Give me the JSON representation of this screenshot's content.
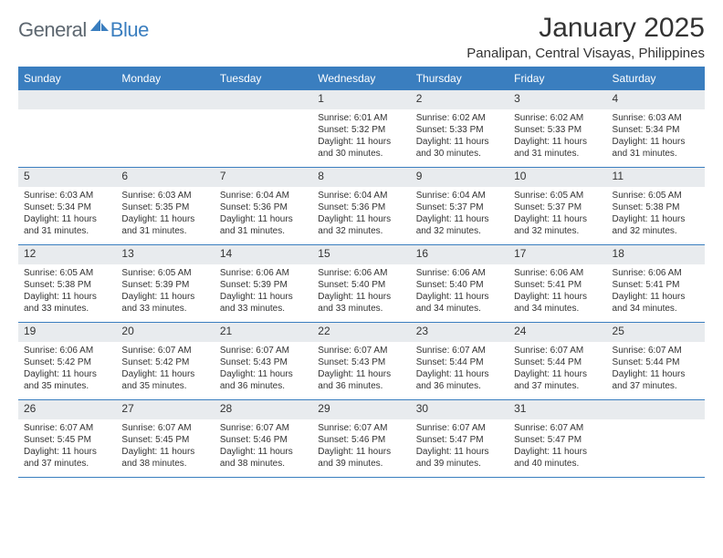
{
  "logo": {
    "general": "General",
    "blue": "Blue"
  },
  "title": "January 2025",
  "location": "Panalipan, Central Visayas, Philippines",
  "colors": {
    "header_bg": "#3a7ebf",
    "header_text": "#ffffff",
    "daynum_bg": "#e8ebee",
    "text": "#333333",
    "page_bg": "#ffffff",
    "logo_gray": "#5d6770",
    "logo_blue": "#3a7ebf"
  },
  "typography": {
    "title_fontsize": 30,
    "location_fontsize": 15,
    "weekday_fontsize": 12,
    "daynum_fontsize": 12,
    "body_fontsize": 10
  },
  "weekdays": [
    "Sunday",
    "Monday",
    "Tuesday",
    "Wednesday",
    "Thursday",
    "Friday",
    "Saturday"
  ],
  "weeks": [
    [
      {
        "n": "",
        "sunrise": "",
        "sunset": "",
        "daylight": ""
      },
      {
        "n": "",
        "sunrise": "",
        "sunset": "",
        "daylight": ""
      },
      {
        "n": "",
        "sunrise": "",
        "sunset": "",
        "daylight": ""
      },
      {
        "n": "1",
        "sunrise": "Sunrise: 6:01 AM",
        "sunset": "Sunset: 5:32 PM",
        "daylight": "Daylight: 11 hours and 30 minutes."
      },
      {
        "n": "2",
        "sunrise": "Sunrise: 6:02 AM",
        "sunset": "Sunset: 5:33 PM",
        "daylight": "Daylight: 11 hours and 30 minutes."
      },
      {
        "n": "3",
        "sunrise": "Sunrise: 6:02 AM",
        "sunset": "Sunset: 5:33 PM",
        "daylight": "Daylight: 11 hours and 31 minutes."
      },
      {
        "n": "4",
        "sunrise": "Sunrise: 6:03 AM",
        "sunset": "Sunset: 5:34 PM",
        "daylight": "Daylight: 11 hours and 31 minutes."
      }
    ],
    [
      {
        "n": "5",
        "sunrise": "Sunrise: 6:03 AM",
        "sunset": "Sunset: 5:34 PM",
        "daylight": "Daylight: 11 hours and 31 minutes."
      },
      {
        "n": "6",
        "sunrise": "Sunrise: 6:03 AM",
        "sunset": "Sunset: 5:35 PM",
        "daylight": "Daylight: 11 hours and 31 minutes."
      },
      {
        "n": "7",
        "sunrise": "Sunrise: 6:04 AM",
        "sunset": "Sunset: 5:36 PM",
        "daylight": "Daylight: 11 hours and 31 minutes."
      },
      {
        "n": "8",
        "sunrise": "Sunrise: 6:04 AM",
        "sunset": "Sunset: 5:36 PM",
        "daylight": "Daylight: 11 hours and 32 minutes."
      },
      {
        "n": "9",
        "sunrise": "Sunrise: 6:04 AM",
        "sunset": "Sunset: 5:37 PM",
        "daylight": "Daylight: 11 hours and 32 minutes."
      },
      {
        "n": "10",
        "sunrise": "Sunrise: 6:05 AM",
        "sunset": "Sunset: 5:37 PM",
        "daylight": "Daylight: 11 hours and 32 minutes."
      },
      {
        "n": "11",
        "sunrise": "Sunrise: 6:05 AM",
        "sunset": "Sunset: 5:38 PM",
        "daylight": "Daylight: 11 hours and 32 minutes."
      }
    ],
    [
      {
        "n": "12",
        "sunrise": "Sunrise: 6:05 AM",
        "sunset": "Sunset: 5:38 PM",
        "daylight": "Daylight: 11 hours and 33 minutes."
      },
      {
        "n": "13",
        "sunrise": "Sunrise: 6:05 AM",
        "sunset": "Sunset: 5:39 PM",
        "daylight": "Daylight: 11 hours and 33 minutes."
      },
      {
        "n": "14",
        "sunrise": "Sunrise: 6:06 AM",
        "sunset": "Sunset: 5:39 PM",
        "daylight": "Daylight: 11 hours and 33 minutes."
      },
      {
        "n": "15",
        "sunrise": "Sunrise: 6:06 AM",
        "sunset": "Sunset: 5:40 PM",
        "daylight": "Daylight: 11 hours and 33 minutes."
      },
      {
        "n": "16",
        "sunrise": "Sunrise: 6:06 AM",
        "sunset": "Sunset: 5:40 PM",
        "daylight": "Daylight: 11 hours and 34 minutes."
      },
      {
        "n": "17",
        "sunrise": "Sunrise: 6:06 AM",
        "sunset": "Sunset: 5:41 PM",
        "daylight": "Daylight: 11 hours and 34 minutes."
      },
      {
        "n": "18",
        "sunrise": "Sunrise: 6:06 AM",
        "sunset": "Sunset: 5:41 PM",
        "daylight": "Daylight: 11 hours and 34 minutes."
      }
    ],
    [
      {
        "n": "19",
        "sunrise": "Sunrise: 6:06 AM",
        "sunset": "Sunset: 5:42 PM",
        "daylight": "Daylight: 11 hours and 35 minutes."
      },
      {
        "n": "20",
        "sunrise": "Sunrise: 6:07 AM",
        "sunset": "Sunset: 5:42 PM",
        "daylight": "Daylight: 11 hours and 35 minutes."
      },
      {
        "n": "21",
        "sunrise": "Sunrise: 6:07 AM",
        "sunset": "Sunset: 5:43 PM",
        "daylight": "Daylight: 11 hours and 36 minutes."
      },
      {
        "n": "22",
        "sunrise": "Sunrise: 6:07 AM",
        "sunset": "Sunset: 5:43 PM",
        "daylight": "Daylight: 11 hours and 36 minutes."
      },
      {
        "n": "23",
        "sunrise": "Sunrise: 6:07 AM",
        "sunset": "Sunset: 5:44 PM",
        "daylight": "Daylight: 11 hours and 36 minutes."
      },
      {
        "n": "24",
        "sunrise": "Sunrise: 6:07 AM",
        "sunset": "Sunset: 5:44 PM",
        "daylight": "Daylight: 11 hours and 37 minutes."
      },
      {
        "n": "25",
        "sunrise": "Sunrise: 6:07 AM",
        "sunset": "Sunset: 5:44 PM",
        "daylight": "Daylight: 11 hours and 37 minutes."
      }
    ],
    [
      {
        "n": "26",
        "sunrise": "Sunrise: 6:07 AM",
        "sunset": "Sunset: 5:45 PM",
        "daylight": "Daylight: 11 hours and 37 minutes."
      },
      {
        "n": "27",
        "sunrise": "Sunrise: 6:07 AM",
        "sunset": "Sunset: 5:45 PM",
        "daylight": "Daylight: 11 hours and 38 minutes."
      },
      {
        "n": "28",
        "sunrise": "Sunrise: 6:07 AM",
        "sunset": "Sunset: 5:46 PM",
        "daylight": "Daylight: 11 hours and 38 minutes."
      },
      {
        "n": "29",
        "sunrise": "Sunrise: 6:07 AM",
        "sunset": "Sunset: 5:46 PM",
        "daylight": "Daylight: 11 hours and 39 minutes."
      },
      {
        "n": "30",
        "sunrise": "Sunrise: 6:07 AM",
        "sunset": "Sunset: 5:47 PM",
        "daylight": "Daylight: 11 hours and 39 minutes."
      },
      {
        "n": "31",
        "sunrise": "Sunrise: 6:07 AM",
        "sunset": "Sunset: 5:47 PM",
        "daylight": "Daylight: 11 hours and 40 minutes."
      },
      {
        "n": "",
        "sunrise": "",
        "sunset": "",
        "daylight": ""
      }
    ]
  ]
}
